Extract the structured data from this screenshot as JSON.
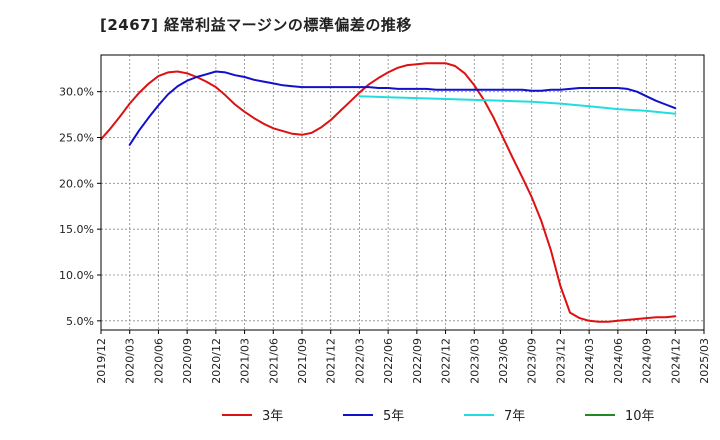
{
  "chart_data": {
    "type": "line",
    "title": "[2467]  経常利益マージンの標準偏差の推移",
    "xlabel": "",
    "ylabel": "",
    "x_ticks": [
      "2019/12",
      "2020/03",
      "2020/06",
      "2020/09",
      "2020/12",
      "2021/03",
      "2021/06",
      "2021/09",
      "2021/12",
      "2022/03",
      "2022/06",
      "2022/09",
      "2022/12",
      "2023/03",
      "2023/06",
      "2023/09",
      "2023/12",
      "2024/03",
      "2024/06",
      "2024/09",
      "2024/12",
      "2025/03"
    ],
    "y_ticks": [
      "5.0%",
      "10.0%",
      "15.0%",
      "20.0%",
      "25.0%",
      "30.0%"
    ],
    "y_tick_values": [
      5,
      10,
      15,
      20,
      25,
      30
    ],
    "ylim": [
      4.0,
      34.0
    ],
    "grid": true,
    "legend_placement": "bottom",
    "series": [
      {
        "name": "3年",
        "color": "#dd1111",
        "x": [
          "2019/12",
          "2020/01",
          "2020/02",
          "2020/03",
          "2020/04",
          "2020/05",
          "2020/06",
          "2020/07",
          "2020/08",
          "2020/09",
          "2020/10",
          "2020/11",
          "2020/12",
          "2021/01",
          "2021/02",
          "2021/03",
          "2021/04",
          "2021/05",
          "2021/06",
          "2021/07",
          "2021/08",
          "2021/09",
          "2021/10",
          "2021/11",
          "2021/12",
          "2022/01",
          "2022/02",
          "2022/03",
          "2022/04",
          "2022/05",
          "2022/06",
          "2022/07",
          "2022/08",
          "2022/09",
          "2022/10",
          "2022/11",
          "2022/12",
          "2023/01",
          "2023/02",
          "2023/03",
          "2023/04",
          "2023/05",
          "2023/06",
          "2023/07",
          "2023/08",
          "2023/09",
          "2023/10",
          "2023/11",
          "2023/12",
          "2024/01",
          "2024/02",
          "2024/03",
          "2024/04",
          "2024/05",
          "2024/06",
          "2024/07",
          "2024/08",
          "2024/09",
          "2024/10",
          "2024/11",
          "2024/12"
        ],
        "values": [
          24.8,
          26.0,
          27.3,
          28.7,
          29.9,
          30.9,
          31.7,
          32.1,
          32.2,
          32.0,
          31.6,
          31.1,
          30.5,
          29.6,
          28.6,
          27.8,
          27.1,
          26.5,
          26.0,
          25.7,
          25.4,
          25.3,
          25.5,
          26.1,
          26.9,
          27.9,
          28.9,
          29.9,
          30.8,
          31.5,
          32.1,
          32.6,
          32.9,
          33.0,
          33.1,
          33.1,
          33.1,
          32.8,
          32.0,
          30.7,
          29.1,
          27.2,
          25.0,
          22.8,
          20.7,
          18.5,
          15.9,
          12.7,
          8.8,
          5.9,
          5.3,
          5.0,
          4.9,
          4.9,
          5.0,
          5.1,
          5.2,
          5.3,
          5.4,
          5.4,
          5.5
        ]
      },
      {
        "name": "5年",
        "color": "#1111cc",
        "x": [
          "2020/03",
          "2020/04",
          "2020/05",
          "2020/06",
          "2020/07",
          "2020/08",
          "2020/09",
          "2020/10",
          "2020/11",
          "2020/12",
          "2021/01",
          "2021/02",
          "2021/03",
          "2021/04",
          "2021/05",
          "2021/06",
          "2021/07",
          "2021/08",
          "2021/09",
          "2021/10",
          "2021/11",
          "2021/12",
          "2022/01",
          "2022/02",
          "2022/03",
          "2022/04",
          "2022/05",
          "2022/06",
          "2022/07",
          "2022/08",
          "2022/09",
          "2022/10",
          "2022/11",
          "2022/12",
          "2023/01",
          "2023/02",
          "2023/03",
          "2023/04",
          "2023/05",
          "2023/06",
          "2023/07",
          "2023/08",
          "2023/09",
          "2023/10",
          "2023/11",
          "2023/12",
          "2024/01",
          "2024/02",
          "2024/03",
          "2024/04",
          "2024/05",
          "2024/06",
          "2024/07",
          "2024/08",
          "2024/09",
          "2024/10",
          "2024/11",
          "2024/12"
        ],
        "values": [
          24.2,
          25.8,
          27.2,
          28.5,
          29.7,
          30.6,
          31.2,
          31.6,
          31.9,
          32.2,
          32.1,
          31.8,
          31.6,
          31.3,
          31.1,
          30.9,
          30.7,
          30.6,
          30.5,
          30.5,
          30.5,
          30.5,
          30.5,
          30.5,
          30.5,
          30.5,
          30.4,
          30.4,
          30.3,
          30.3,
          30.3,
          30.3,
          30.2,
          30.2,
          30.2,
          30.2,
          30.2,
          30.2,
          30.2,
          30.2,
          30.2,
          30.2,
          30.1,
          30.1,
          30.2,
          30.2,
          30.3,
          30.4,
          30.4,
          30.4,
          30.4,
          30.4,
          30.3,
          30.0,
          29.5,
          29.0,
          28.6,
          28.2
        ]
      },
      {
        "name": "7年",
        "color": "#22dddd",
        "x": [
          "2022/03",
          "2022/06",
          "2022/09",
          "2022/12",
          "2023/03",
          "2023/06",
          "2023/09",
          "2023/12",
          "2024/03",
          "2024/06",
          "2024/09",
          "2024/12"
        ],
        "values": [
          29.5,
          29.4,
          29.3,
          29.2,
          29.1,
          29.0,
          28.9,
          28.7,
          28.4,
          28.1,
          27.9,
          27.6
        ]
      },
      {
        "name": "10年",
        "color": "#228822",
        "x": [],
        "values": []
      }
    ]
  }
}
